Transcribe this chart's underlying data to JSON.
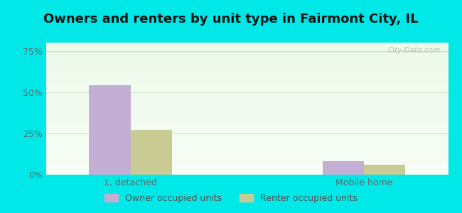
{
  "title": "Owners and renters by unit type in Fairmont City, IL",
  "categories": [
    "1, detached",
    "Mobile home"
  ],
  "owner_values": [
    54,
    8
  ],
  "renter_values": [
    27,
    6
  ],
  "owner_color": "#c4afd4",
  "renter_color": "#c8cc94",
  "yticks": [
    0,
    25,
    50,
    75
  ],
  "ytick_labels": [
    "0%",
    "25%",
    "50%",
    "75%"
  ],
  "ylim": [
    0,
    80
  ],
  "bar_width": 0.32,
  "outer_color": "#00e8e8",
  "legend_labels": [
    "Owner occupied units",
    "Renter occupied units"
  ],
  "watermark": "City-Data.com",
  "title_fontsize": 13,
  "axis_fontsize": 9,
  "legend_fontsize": 9,
  "x_positions": [
    1.0,
    2.8
  ],
  "xlim": [
    0.35,
    3.45
  ]
}
